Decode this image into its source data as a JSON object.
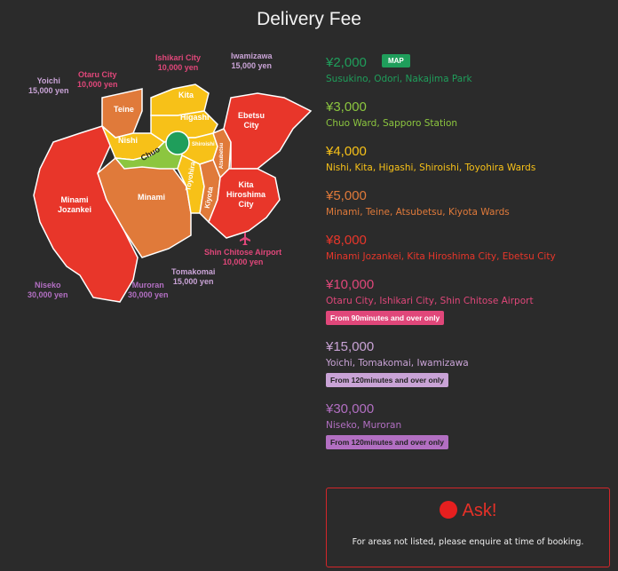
{
  "page": {
    "title": "Delivery Fee"
  },
  "colors": {
    "green_dark": "#1f9e5b",
    "green_light": "#8cc63f",
    "yellow": "#f7c118",
    "orange": "#e07a3a",
    "red": "#e8362a",
    "pink": "#e0477a",
    "lavender": "#c9a3d6",
    "purple": "#b26fc2",
    "ask_red": "#e53128"
  },
  "map": {
    "regions": {
      "minami_jozankei": "Minami\nJozankei",
      "minami": "Minami",
      "teine": "Teine",
      "nishi": "Nishi",
      "kita": "Kita",
      "higashi": "Higashi",
      "chuo": "Chuo",
      "shiroishi": "Shiroishi",
      "toyohira": "Toyohira",
      "kiyota": "Kiyota",
      "atsubetsu": "Atsubetsu",
      "ebetsu": "Ebetsu\nCity",
      "kita_hiroshima": "Kita\nHiroshima\nCity"
    },
    "annotations": {
      "yoichi": {
        "name": "Yoichi",
        "price": "15,000 yen"
      },
      "otaru": {
        "name": "Otaru City",
        "price": "10,000 yen"
      },
      "ishikari": {
        "name": "Ishikari City",
        "price": "10,000 yen"
      },
      "iwamizawa": {
        "name": "Iwamizawa",
        "price": "15,000 yen"
      },
      "airport": {
        "name": "Shin Chitose Airport",
        "price": "10,000 yen"
      },
      "tomakomai": {
        "name": "Tomakomai",
        "price": "15,000 yen"
      },
      "niseko": {
        "name": "Niseko",
        "price": "30,000 yen"
      },
      "muroran": {
        "name": "Muroran",
        "price": "30,000 yen"
      }
    }
  },
  "tiers": [
    {
      "price": "¥2,000",
      "areas": "Susukino, Odori, Nakajima Park",
      "button": "MAP"
    },
    {
      "price": "¥3,000",
      "areas": "Chuo Ward, Sapporo Station"
    },
    {
      "price": "¥4,000",
      "areas": "Nishi, Kita, Higashi, Shiroishi, Toyohira Wards"
    },
    {
      "price": "¥5,000",
      "areas": "Minami, Teine, Atsubetsu, Kiyota Wards"
    },
    {
      "price": "¥8,000",
      "areas": "Minami Jozankei, Kita Hiroshima City, Ebetsu City"
    },
    {
      "price": "¥10,000",
      "areas": "Otaru City, Ishikari City, Shin Chitose Airport",
      "note": "From 90minutes and over only"
    },
    {
      "price": "¥15,000",
      "areas": "Yoichi, Tomakomai, Iwamizawa",
      "note": "From 120minutes and over only"
    },
    {
      "price": "¥30,000",
      "areas": "Niseko, Muroran",
      "note": "From 120minutes and over only"
    }
  ],
  "ask": {
    "title": "Ask!",
    "text": "For areas not listed, please enquire at time of booking."
  }
}
